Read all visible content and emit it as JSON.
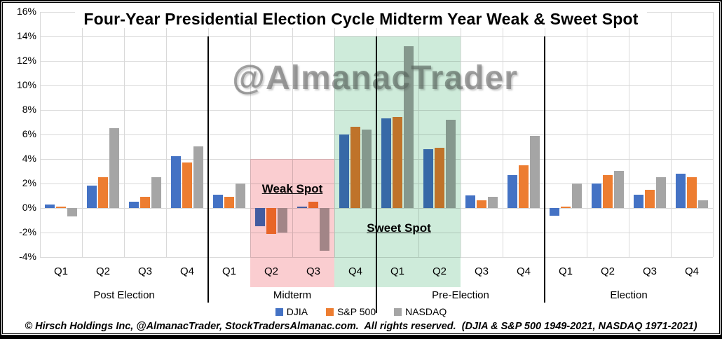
{
  "watermark": "@AlmanacTrader",
  "footer": "© Hirsch Holdings Inc, @AlmanacTrader, StockTradersAlmanac.com.  All rights reserved.  (DJIA & S&P 500 1949-2021, NASDAQ 1971-2021)",
  "chart_data": {
    "type": "bar",
    "title": "Four-Year Presidential Election Cycle Midterm Year Weak & Sweet Spot",
    "groups": [
      "Post Election",
      "Midterm",
      "Pre-Election",
      "Election"
    ],
    "quarters": [
      "Q1",
      "Q2",
      "Q3",
      "Q4"
    ],
    "y_axis": {
      "min": -4,
      "max": 16,
      "step": 2,
      "unit": "%",
      "grid": true,
      "tick_labels": [
        "16%",
        "14%",
        "12%",
        "10%",
        "8%",
        "6%",
        "4%",
        "2%",
        "0%",
        "-2%",
        "-4%"
      ]
    },
    "series": [
      {
        "name": "DJIA",
        "color": "#4472C4",
        "values": [
          0.3,
          1.8,
          0.5,
          4.2,
          1.1,
          -1.5,
          0.1,
          6.0,
          7.3,
          4.8,
          1.0,
          2.7,
          -0.6,
          2.0,
          1.1,
          2.8
        ]
      },
      {
        "name": "S&P 500",
        "color": "#ED7D31",
        "values": [
          0.1,
          2.5,
          0.9,
          3.7,
          0.9,
          -2.1,
          0.5,
          6.6,
          7.4,
          4.9,
          0.6,
          3.5,
          0.1,
          2.7,
          1.5,
          2.5
        ]
      },
      {
        "name": "NASDAQ",
        "color": "#A5A5A5",
        "values": [
          -0.7,
          6.5,
          2.5,
          5.0,
          2.0,
          -2.0,
          -3.5,
          6.4,
          13.2,
          7.2,
          0.9,
          5.9,
          2.0,
          3.0,
          2.5,
          0.6
        ]
      }
    ],
    "legend": {
      "position": "bottom",
      "labels": [
        "DJIA",
        "S&P 500",
        "NASDAQ"
      ]
    },
    "highlight_zones": [
      {
        "label": "Weak Spot",
        "color": "#FACDD0",
        "covers": [
          "Midterm Q2",
          "Midterm Q3"
        ],
        "start_cell": 5,
        "end_cell": 6,
        "top_value": 4
      },
      {
        "label": "Sweet Spot",
        "color": "#CEEBDA",
        "covers": [
          "Midterm Q4",
          "Pre-Election Q1",
          "Pre-Election Q2"
        ],
        "start_cell": 7,
        "end_cell": 9,
        "top_value": 14
      }
    ]
  }
}
